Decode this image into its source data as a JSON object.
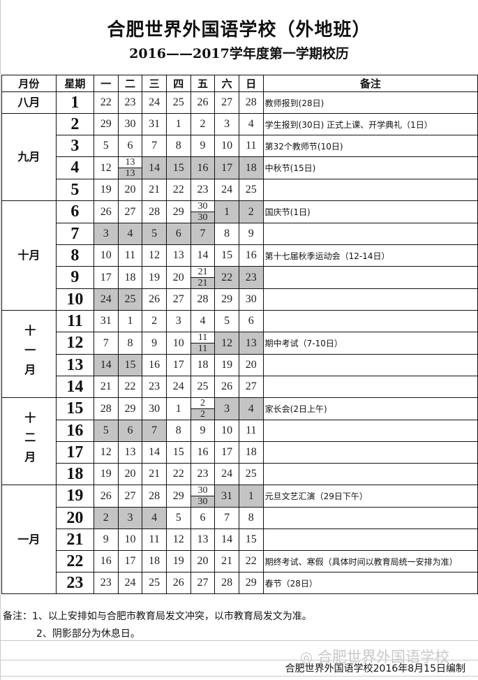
{
  "title": "合肥世界外国语学校（外地班）",
  "subtitle": "2016——2017学年度第一学期校历",
  "header": {
    "month": "月份",
    "week": "星期",
    "days": [
      "一",
      "二",
      "三",
      "四",
      "五",
      "六",
      "日"
    ],
    "notes": "备注"
  },
  "shade_color": "#c4c4c4",
  "months": [
    {
      "label": "八月",
      "rows": 1
    },
    {
      "label": "九月",
      "rows": 4
    },
    {
      "label": "十月",
      "rows": 5
    },
    {
      "label": "十一月",
      "rows": 4,
      "vertical": true
    },
    {
      "label": "十二月",
      "rows": 4,
      "vertical": true
    },
    {
      "label": "一月",
      "rows": 5
    }
  ],
  "weeks": [
    {
      "week": "1",
      "days": [
        {
          "d": "22"
        },
        {
          "d": "23"
        },
        {
          "d": "24"
        },
        {
          "d": "25"
        },
        {
          "d": "26"
        },
        {
          "d": "27"
        },
        {
          "d": "28"
        }
      ],
      "note": "教师报到(28日)"
    },
    {
      "week": "2",
      "days": [
        {
          "d": "29"
        },
        {
          "d": "30"
        },
        {
          "d": "31"
        },
        {
          "d": "1"
        },
        {
          "d": "2"
        },
        {
          "d": "3"
        },
        {
          "d": "4"
        }
      ],
      "note": "学生报到(30日) 正式上课、开学典礼（1日）"
    },
    {
      "week": "3",
      "days": [
        {
          "d": "5"
        },
        {
          "d": "6"
        },
        {
          "d": "7"
        },
        {
          "d": "8"
        },
        {
          "d": "9"
        },
        {
          "d": "10"
        },
        {
          "d": "11"
        }
      ],
      "note": "第32个教师节(10日)"
    },
    {
      "week": "4",
      "days": [
        {
          "d": "12"
        },
        {
          "top": "13",
          "bottom": "13"
        },
        {
          "d": "14",
          "shade": true
        },
        {
          "d": "15",
          "shade": true
        },
        {
          "d": "16",
          "shade": true
        },
        {
          "d": "17",
          "shade": true
        },
        {
          "d": "18",
          "shade": true
        }
      ],
      "note": "中秋节(15日)"
    },
    {
      "week": "5",
      "days": [
        {
          "d": "19"
        },
        {
          "d": "20"
        },
        {
          "d": "21"
        },
        {
          "d": "22"
        },
        {
          "d": "23"
        },
        {
          "d": "24"
        },
        {
          "d": "25"
        }
      ],
      "note": ""
    },
    {
      "week": "6",
      "days": [
        {
          "d": "26"
        },
        {
          "d": "27"
        },
        {
          "d": "28"
        },
        {
          "d": "29"
        },
        {
          "top": "30",
          "bottom": "30"
        },
        {
          "d": "1",
          "shade": true
        },
        {
          "d": "2",
          "shade": true
        }
      ],
      "note": "国庆节(1日)"
    },
    {
      "week": "7",
      "days": [
        {
          "d": "3",
          "shade": true
        },
        {
          "d": "4",
          "shade": true
        },
        {
          "d": "5",
          "shade": true
        },
        {
          "d": "6",
          "shade": true
        },
        {
          "d": "7",
          "shade": true
        },
        {
          "d": "8"
        },
        {
          "d": "9"
        }
      ],
      "note": ""
    },
    {
      "week": "8",
      "days": [
        {
          "d": "10"
        },
        {
          "d": "11"
        },
        {
          "d": "12"
        },
        {
          "d": "13"
        },
        {
          "d": "14"
        },
        {
          "d": "15"
        },
        {
          "d": "16"
        }
      ],
      "note": "第十七届秋季运动会（12-14日）"
    },
    {
      "week": "9",
      "days": [
        {
          "d": "17"
        },
        {
          "d": "18"
        },
        {
          "d": "19"
        },
        {
          "d": "20"
        },
        {
          "top": "21",
          "bottom": "21"
        },
        {
          "d": "22",
          "shade": true
        },
        {
          "d": "23",
          "shade": true
        }
      ],
      "note": ""
    },
    {
      "week": "10",
      "days": [
        {
          "d": "24",
          "shade": true
        },
        {
          "d": "25",
          "shade": true
        },
        {
          "d": "26"
        },
        {
          "d": "27"
        },
        {
          "d": "28"
        },
        {
          "d": "29"
        },
        {
          "d": "30"
        }
      ],
      "note": ""
    },
    {
      "week": "11",
      "days": [
        {
          "d": "31"
        },
        {
          "d": "1"
        },
        {
          "d": "2"
        },
        {
          "d": "3"
        },
        {
          "d": "4"
        },
        {
          "d": "5"
        },
        {
          "d": "6"
        }
      ],
      "note": ""
    },
    {
      "week": "12",
      "days": [
        {
          "d": "7"
        },
        {
          "d": "8"
        },
        {
          "d": "9"
        },
        {
          "d": "10"
        },
        {
          "top": "11",
          "bottom": "11"
        },
        {
          "d": "12",
          "shade": true
        },
        {
          "d": "13",
          "shade": true
        }
      ],
      "note": "期中考试（7-10日）"
    },
    {
      "week": "13",
      "days": [
        {
          "d": "14",
          "shade": true
        },
        {
          "d": "15",
          "shade": true
        },
        {
          "d": "16"
        },
        {
          "d": "17"
        },
        {
          "d": "18"
        },
        {
          "d": "19"
        },
        {
          "d": "20"
        }
      ],
      "note": ""
    },
    {
      "week": "14",
      "days": [
        {
          "d": "21"
        },
        {
          "d": "22"
        },
        {
          "d": "23"
        },
        {
          "d": "24"
        },
        {
          "d": "25"
        },
        {
          "d": "26"
        },
        {
          "d": "27"
        }
      ],
      "note": ""
    },
    {
      "week": "15",
      "days": [
        {
          "d": "28"
        },
        {
          "d": "29"
        },
        {
          "d": "30"
        },
        {
          "d": "1"
        },
        {
          "top": "2",
          "bottom": "2"
        },
        {
          "d": "3",
          "shade": true
        },
        {
          "d": "4",
          "shade": true
        }
      ],
      "note": "家长会(2日上午)"
    },
    {
      "week": "16",
      "days": [
        {
          "d": "5",
          "shade": true
        },
        {
          "d": "6",
          "shade": true
        },
        {
          "d": "7",
          "shade": true
        },
        {
          "d": "8"
        },
        {
          "d": "9"
        },
        {
          "d": "10"
        },
        {
          "d": "11"
        }
      ],
      "note": ""
    },
    {
      "week": "17",
      "days": [
        {
          "d": "12"
        },
        {
          "d": "13"
        },
        {
          "d": "14"
        },
        {
          "d": "15"
        },
        {
          "d": "16"
        },
        {
          "d": "17"
        },
        {
          "d": "18"
        }
      ],
      "note": ""
    },
    {
      "week": "18",
      "days": [
        {
          "d": "19"
        },
        {
          "d": "20"
        },
        {
          "d": "21"
        },
        {
          "d": "22"
        },
        {
          "d": "23"
        },
        {
          "d": "24"
        },
        {
          "d": "25"
        }
      ],
      "note": ""
    },
    {
      "week": "19",
      "days": [
        {
          "d": "26"
        },
        {
          "d": "27"
        },
        {
          "d": "28"
        },
        {
          "d": "29"
        },
        {
          "top": "30",
          "bottom": "30"
        },
        {
          "d": "31",
          "shade": true
        },
        {
          "d": "1",
          "shade": true
        }
      ],
      "note": "元旦文艺汇演（29日下午）"
    },
    {
      "week": "20",
      "days": [
        {
          "d": "2",
          "shade": true
        },
        {
          "d": "3",
          "shade": true
        },
        {
          "d": "4",
          "shade": true
        },
        {
          "d": "5"
        },
        {
          "d": "6"
        },
        {
          "d": "7"
        },
        {
          "d": "8"
        }
      ],
      "note": ""
    },
    {
      "week": "21",
      "days": [
        {
          "d": "9"
        },
        {
          "d": "10"
        },
        {
          "d": "11"
        },
        {
          "d": "12"
        },
        {
          "d": "13"
        },
        {
          "d": "14"
        },
        {
          "d": "15"
        }
      ],
      "note": ""
    },
    {
      "week": "22",
      "days": [
        {
          "d": "16"
        },
        {
          "d": "17"
        },
        {
          "d": "18"
        },
        {
          "d": "19"
        },
        {
          "d": "20"
        },
        {
          "d": "21"
        },
        {
          "d": "22"
        }
      ],
      "note": "期终考试、寒假（具体时间以教育局统一安排为准）"
    },
    {
      "week": "23",
      "days": [
        {
          "d": "23"
        },
        {
          "d": "24"
        },
        {
          "d": "25"
        },
        {
          "d": "26"
        },
        {
          "d": "27"
        },
        {
          "d": "28"
        },
        {
          "d": "29"
        }
      ],
      "note": "春节（28日）"
    }
  ],
  "footnotes": {
    "line1": "备注：1、以上安排如与合肥市教育局发文冲突，以市教育局发文为准。",
    "line2": "2、阴影部分为休息日。"
  },
  "watermark": "合肥世界外国语学校",
  "maker": "合肥世界外国语学校2016年8月15日编制"
}
